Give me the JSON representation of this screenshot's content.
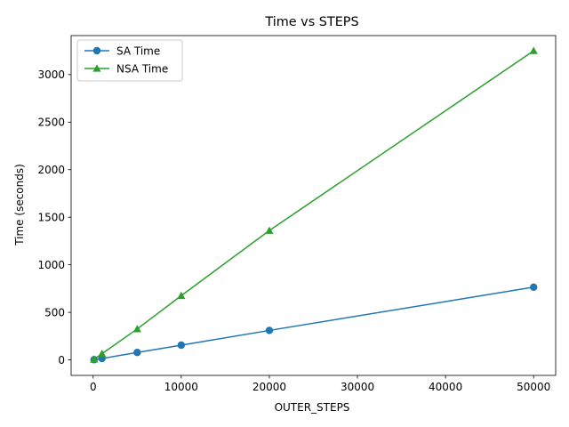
{
  "chart_data": {
    "type": "line",
    "title": "Time vs STEPS",
    "xlabel": "OUTER_STEPS",
    "ylabel": "Time (seconds)",
    "xlim": [
      -2500,
      52500
    ],
    "ylim": [
      -163,
      3410
    ],
    "xticks": [
      0,
      10000,
      20000,
      30000,
      40000,
      50000
    ],
    "yticks": [
      0,
      500,
      1000,
      1500,
      2000,
      2500,
      3000
    ],
    "grid": false,
    "legend_position": "top-left",
    "series": [
      {
        "name": "SA Time",
        "color": "#1f77b4",
        "marker": "circle",
        "x": [
          100,
          1000,
          5000,
          10000,
          20000,
          50000
        ],
        "values": [
          2,
          15,
          78,
          155,
          310,
          765
        ]
      },
      {
        "name": "NSA Time",
        "color": "#2ca02c",
        "marker": "triangle",
        "x": [
          100,
          1000,
          5000,
          10000,
          20000,
          50000
        ],
        "values": [
          6,
          65,
          325,
          675,
          1360,
          3250
        ]
      }
    ]
  }
}
